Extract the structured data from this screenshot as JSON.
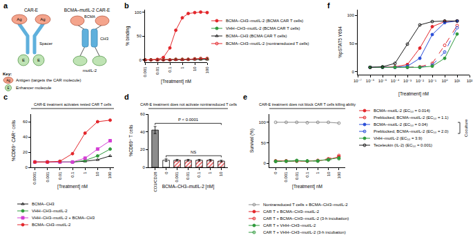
{
  "panel_labels": [
    "a",
    "b",
    "c",
    "d",
    "e",
    "f"
  ],
  "diagram": {
    "car_e": {
      "title": "CAR-E",
      "antigen": "Ag",
      "spacer": "Spacer",
      "enhancer": "E"
    },
    "bcma_car_e": {
      "title": "BCMA–mutIL-2 CAR-E",
      "antigen": "BCMA",
      "spacer": "CH3",
      "enhancer": "mutIL-2"
    },
    "key": {
      "title": "Key:",
      "items": [
        {
          "symbol": "Ag",
          "text": "Antigen (targets the CAR molecule)"
        },
        {
          "symbol": "E",
          "text": "Enhancer molecule"
        }
      ]
    }
  },
  "chart_data": [
    {
      "type": "line",
      "log": "x",
      "x": [
        0.001,
        0.003,
        0.01,
        0.03,
        0.1,
        0.3,
        1,
        3,
        10,
        30,
        100
      ],
      "xlim": [
        0.001,
        100
      ],
      "xticks": [
        0.001,
        0.01,
        0.1,
        1,
        10,
        100
      ],
      "ylim": [
        -5,
        105
      ],
      "yticks": [
        0,
        50,
        100
      ],
      "x_label": "[Treatment] nM",
      "y_label": "% binding",
      "series": [
        {
          "name": "BCMA–CH3–mutIL-2 (BCMA CAR T cells)",
          "color": "#e3262b",
          "marker": "circle",
          "line_style": "solid",
          "values": [
            0,
            0,
            1,
            5,
            25,
            62,
            88,
            97,
            99,
            100,
            99
          ]
        },
        {
          "name": "VHH–CH3–mutIL-2 (BCMA CAR T cells)",
          "color": "#2f9a3c",
          "marker": "circle",
          "line_style": "solid",
          "values": [
            0,
            0,
            0,
            0,
            0,
            1,
            1,
            1,
            2,
            2,
            2
          ]
        },
        {
          "name": "BCMA–CH3 (BCMA CAR T cells)",
          "color": "#1a1a1a",
          "marker": "triangle-up-open",
          "line_style": "solid",
          "values": [
            0,
            0,
            0,
            0,
            0,
            0,
            0,
            1,
            1,
            1,
            1
          ]
        },
        {
          "name": "BCMA–CH3–mutIL-2 (nontransduced T cells)",
          "color": "#e3262b",
          "marker": "circle-open",
          "line_style": "solid",
          "values": [
            0,
            0,
            0,
            0,
            0,
            1,
            1,
            1,
            2,
            3,
            3
          ]
        }
      ]
    },
    {
      "type": "line",
      "log": "x",
      "title": "CAR-E treatment activates rested CAR T cells",
      "x": [
        0.0001,
        0.001,
        0.01,
        0.1,
        1,
        10,
        100
      ],
      "xlim": [
        5e-05,
        200
      ],
      "xticks": [
        0.0001,
        0.001,
        0.01,
        0.1,
        1,
        10,
        100
      ],
      "ylim": [
        0,
        70
      ],
      "yticks": [
        0,
        20,
        40,
        60
      ],
      "x_label": "[Treatment] nM",
      "y_label": "%CD69⁺ CAR⁺ cells",
      "series": [
        {
          "name": "BCMA–CH3",
          "color": "#1a1a1a",
          "marker": "triangle-up-open",
          "line_style": "solid",
          "values": [
            7,
            7,
            7,
            7,
            8,
            10,
            15
          ]
        },
        {
          "name": "VHH–CH3–mutIL-2",
          "color": "#2f9a3c",
          "marker": "circle",
          "line_style": "solid",
          "values": [
            7,
            7,
            7,
            7,
            9,
            15,
            24
          ]
        },
        {
          "name": "VHH–CH3–mutIL-2 + BCMA–CH3",
          "color": "#d43fd4",
          "marker": "square",
          "line_style": "solid",
          "values": [
            7,
            7,
            7,
            7,
            12,
            24,
            35
          ]
        },
        {
          "name": "BCMA–CH3–mutIL-2",
          "color": "#e3262b",
          "marker": "circle",
          "line_style": "solid",
          "values": [
            7,
            7,
            8,
            18,
            45,
            60,
            62
          ]
        }
      ]
    },
    {
      "type": "bar",
      "title": "CAR-E treatment does not activate nontransduced T cells",
      "categories": [
        "CD3/CD28",
        "0",
        "0.001",
        "0.01",
        "0.1",
        "1",
        "10"
      ],
      "values": [
        42,
        8,
        8,
        8,
        8,
        8,
        7
      ],
      "errors": [
        4,
        1.5,
        1,
        1,
        1,
        1,
        1
      ],
      "colors": [
        "#8c8c8c",
        "#ffffff",
        "#e3262b",
        "#e3262b",
        "#e3262b",
        "#e3262b",
        "#e3262b"
      ],
      "ylim": [
        0,
        60
      ],
      "yticks": [
        0,
        20,
        40,
        60
      ],
      "x_label": "BCMA–CH3–mutIL-2 [nM]",
      "y_label": "%CD69⁺ T cells",
      "annotations": [
        "P < 0.0001",
        "NS"
      ]
    },
    {
      "type": "line",
      "title": "CAR-E treatment does not block CAR T cells killing ability",
      "categories": [
        "0",
        "0.001",
        "0.01",
        "0.1",
        "1",
        "10",
        "100"
      ],
      "ylim": [
        -10,
        120
      ],
      "yticks": [
        0,
        50,
        100
      ],
      "x_label": "[Treatment] nM",
      "y_label": "Survival (%)",
      "series": [
        {
          "name": "Nontransduced T cells + BCMA–CH3–mutIL-2",
          "color": "#8c8c8c",
          "marker": "circle-open",
          "line_style": "solid",
          "values": [
            100,
            100,
            100,
            99,
            100,
            100,
            98
          ]
        },
        {
          "name": "CAR T + BCMA–CH3–mutIL-2",
          "color": "#e3262b",
          "marker": "circle",
          "line_style": "solid",
          "values": [
            5,
            6,
            5,
            5,
            6,
            9,
            16
          ]
        },
        {
          "name": "CAR T + BCMA–CH3–mutIL-2 (3-h incubation)",
          "color": "#e3262b",
          "marker": "circle-open",
          "line_style": "dash",
          "values": [
            6,
            5,
            6,
            5,
            7,
            11,
            19
          ]
        },
        {
          "name": "CAR T + VHH–CH3–mutIL-2",
          "color": "#2f9a3c",
          "marker": "circle",
          "line_style": "solid",
          "values": [
            5,
            5,
            7,
            5,
            6,
            9,
            13
          ]
        },
        {
          "name": "CAR T + VHH–CH3–mutIL-2 (3-h incubation)",
          "color": "#2f9a3c",
          "marker": "circle-open",
          "line_style": "dash",
          "values": [
            4,
            5,
            5,
            6,
            5,
            8,
            11
          ]
        }
      ]
    },
    {
      "type": "line",
      "log": "x",
      "x": [
        1e-06,
        1e-05,
        0.0001,
        0.001,
        0.01,
        0.1,
        1,
        10
      ],
      "xlim": [
        1e-07,
        100
      ],
      "xticks": [
        {
          "value": 1e-07,
          "label": "10⁻⁷"
        },
        {
          "value": 1e-06,
          "label": "10⁻⁶"
        },
        {
          "value": 1e-05,
          "label": "10⁻⁵"
        },
        {
          "value": 0.0001,
          "label": "10⁻⁴"
        },
        {
          "value": 0.001,
          "label": "10⁻³"
        },
        {
          "value": 0.01,
          "label": "10⁻²"
        },
        {
          "value": 0.1,
          "label": "10⁻¹"
        },
        {
          "value": 1,
          "label": "10⁰"
        },
        {
          "value": 10,
          "label": "10¹"
        },
        {
          "value": 100,
          "label": "10²"
        }
      ],
      "ylim": [
        -5,
        110
      ],
      "yticks": [
        0,
        50,
        100
      ],
      "x_label": "[Treatment] nM",
      "y_label": "%pSTAT5 Y694",
      "annotations": [
        "Coculture"
      ],
      "series": [
        {
          "name": "BCMA–mutIL-2 (EC₅₀ = 0.014)",
          "color": "#e3262b",
          "marker": "circle",
          "line_style": "solid",
          "values": [
            8,
            8,
            9,
            13,
            42,
            80,
            89,
            90
          ]
        },
        {
          "name": "Preblocked, BCMA–mutIL-2 (EC₅₀ = 1.1)",
          "color": "#e3262b",
          "marker": "circle-open",
          "line_style": "dash",
          "values": [
            8,
            8,
            8,
            8,
            9,
            15,
            47,
            82
          ]
        },
        {
          "name": "BCMA–mutIL-2 (EC₅₀ = 0.04)",
          "color": "#2b4fd8",
          "marker": "circle",
          "line_style": "solid",
          "values": [
            8,
            8,
            8,
            10,
            24,
            66,
            87,
            90
          ]
        },
        {
          "name": "Preblocked, BCMA–mutIL-2 (EC₅₀ = 2.0)",
          "color": "#2b4fd8",
          "marker": "circle-open",
          "line_style": "dash",
          "values": [
            8,
            8,
            8,
            8,
            8,
            12,
            35,
            78
          ]
        },
        {
          "name": "VHH–mutIL-2 (EC₅₀ = 3.9)",
          "color": "#2f9a3c",
          "marker": "circle",
          "line_style": "solid",
          "values": [
            8,
            8,
            8,
            8,
            8,
            10,
            24,
            67
          ]
        },
        {
          "name": "Teceleukin (IL-2) (EC₅₀ = 0.001)",
          "color": "#1a1a1a",
          "marker": "circle-open",
          "line_style": "solid",
          "values": [
            8,
            9,
            15,
            49,
            83,
            89,
            90,
            90
          ]
        }
      ]
    }
  ]
}
